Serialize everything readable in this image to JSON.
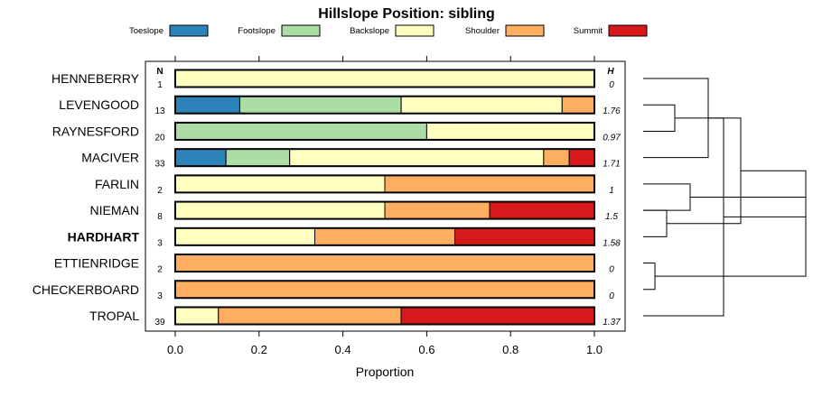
{
  "chart_data": {
    "type": "bar",
    "stacked": true,
    "orientation": "horizontal",
    "title": "Hillslope Position: sibling",
    "xlabel": "Proportion",
    "xlim": [
      0,
      1
    ],
    "x_ticks": [
      "0.0",
      "0.2",
      "0.4",
      "0.6",
      "0.8",
      "1.0"
    ],
    "legend": [
      {
        "name": "Toeslope",
        "color": "#2b83ba"
      },
      {
        "name": "Footslope",
        "color": "#abdda4"
      },
      {
        "name": "Backslope",
        "color": "#ffffbf"
      },
      {
        "name": "Shoulder",
        "color": "#fdae61"
      },
      {
        "name": "Summit",
        "color": "#d7191c"
      }
    ],
    "legend_placement": "top",
    "n_header": "N",
    "h_header": "H",
    "categories": [
      "HENNEBERRY",
      "LEVENGOOD",
      "RAYNESFORD",
      "MACIVER",
      "FARLIN",
      "NIEMAN",
      "HARDHART",
      "ETTIENRIDGE",
      "CHECKERBOARD",
      "TROPAL"
    ],
    "highlight": "HARDHART",
    "n": [
      "1",
      "13",
      "20",
      "33",
      "2",
      "8",
      "3",
      "2",
      "3",
      "39"
    ],
    "h": [
      "0",
      "1.76",
      "0.97",
      "1.71",
      "1",
      "1.5",
      "1.58",
      "0",
      "0",
      "1.37"
    ],
    "values": [
      [
        0,
        0,
        1,
        0,
        0
      ],
      [
        0.154,
        0.385,
        0.384,
        0.077,
        0
      ],
      [
        0,
        0.6,
        0.4,
        0,
        0
      ],
      [
        0.121,
        0.152,
        0.606,
        0.061,
        0.06
      ],
      [
        0,
        0,
        0.5,
        0.5,
        0
      ],
      [
        0,
        0,
        0.5,
        0.25,
        0.25
      ],
      [
        0,
        0,
        0.333,
        0.334,
        0.333
      ],
      [
        0,
        0,
        0,
        1,
        0
      ],
      [
        0,
        0,
        0,
        1,
        0
      ],
      [
        0,
        0,
        0.103,
        0.436,
        0.461
      ]
    ],
    "dendrogram": {
      "merges": [
        [
          1,
          2
        ],
        [
          0,
          3
        ],
        [
          5,
          6
        ],
        [
          4,
          5
        ],
        [
          7,
          8
        ],
        [
          9,
          10
        ],
        [
          11,
          12
        ],
        [
          13,
          15
        ],
        [
          14,
          16
        ]
      ],
      "leaf_order": [
        "HENNEBERRY",
        "LEVENGOOD",
        "RAYNESFORD",
        "MACIVER",
        "FARLIN",
        "NIEMAN",
        "HARDHART",
        "ETTIENRIDGE",
        "CHECKERBOARD",
        "TROPAL"
      ]
    }
  }
}
